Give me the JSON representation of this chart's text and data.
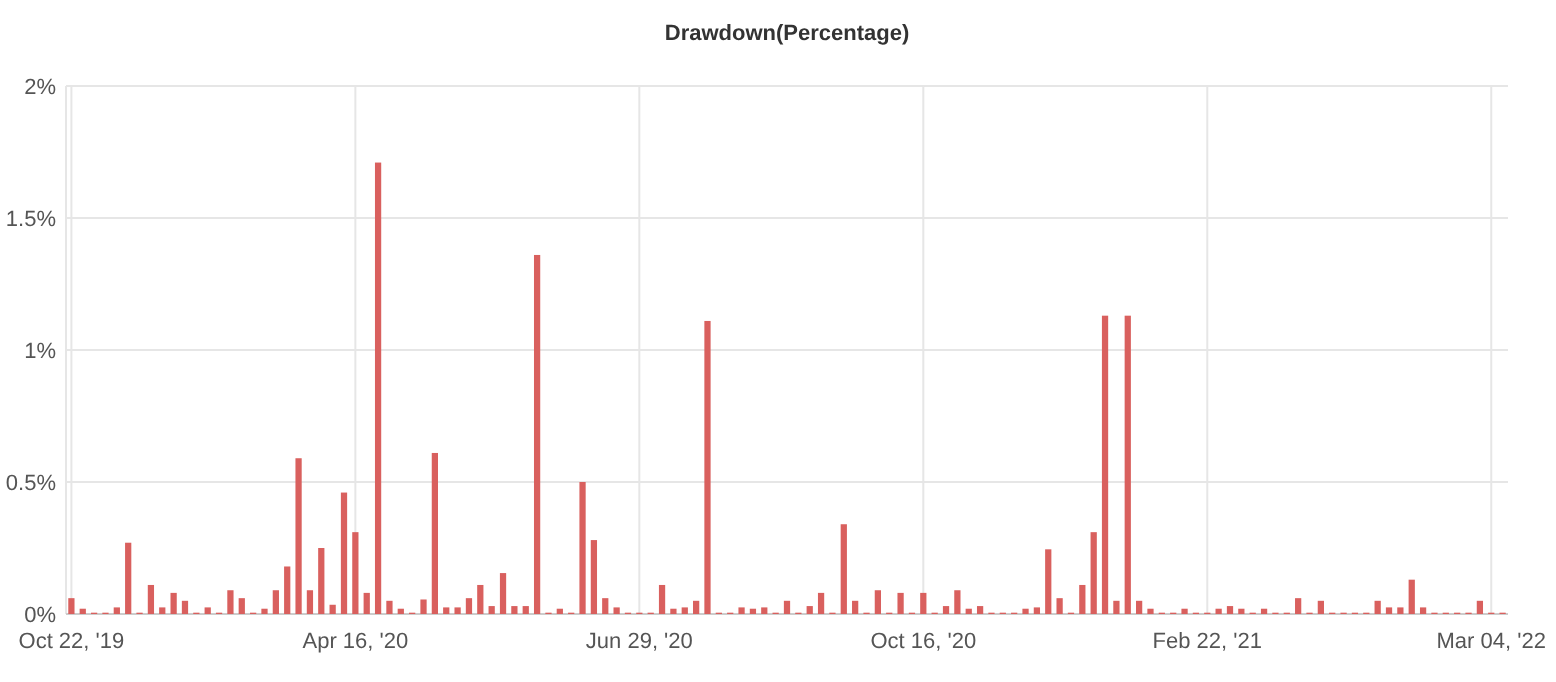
{
  "chart_data": {
    "type": "bar",
    "title": "Drawdown(Percentage)",
    "categories": [
      "Oct 22, '19",
      null,
      null,
      null,
      null,
      null,
      null,
      null,
      null,
      null,
      null,
      null,
      null,
      null,
      null,
      null,
      null,
      null,
      null,
      null,
      null,
      null,
      null,
      null,
      null,
      "Apr 16, '20",
      null,
      null,
      null,
      null,
      null,
      null,
      null,
      null,
      null,
      null,
      null,
      null,
      null,
      null,
      null,
      null,
      null,
      null,
      null,
      null,
      null,
      null,
      null,
      null,
      "Jun 29, '20",
      null,
      null,
      null,
      null,
      null,
      null,
      null,
      null,
      null,
      null,
      null,
      null,
      null,
      null,
      null,
      null,
      null,
      null,
      null,
      null,
      null,
      null,
      null,
      null,
      "Oct 16, '20",
      null,
      null,
      null,
      null,
      null,
      null,
      null,
      null,
      null,
      null,
      null,
      null,
      null,
      null,
      null,
      null,
      null,
      null,
      null,
      null,
      null,
      null,
      null,
      null,
      "Feb 22, '21",
      null,
      null,
      null,
      null,
      null,
      null,
      null,
      null,
      null,
      null,
      null,
      null,
      null,
      null,
      null,
      null,
      null,
      null,
      null,
      null,
      null,
      null,
      null,
      null,
      "Mar 04, '22",
      null
    ],
    "values": [
      0.06,
      0.02,
      0.005,
      0.005,
      0.025,
      0.27,
      0.005,
      0.11,
      0.025,
      0.08,
      0.05,
      0.005,
      0.025,
      0.005,
      0.09,
      0.06,
      0.005,
      0.02,
      0.09,
      0.18,
      0.59,
      0.09,
      0.25,
      0.035,
      0.46,
      0.31,
      0.08,
      1.71,
      0.05,
      0.02,
      0.005,
      0.055,
      0.61,
      0.025,
      0.025,
      0.06,
      0.11,
      0.03,
      0.155,
      0.03,
      0.03,
      1.36,
      0.005,
      0.02,
      0.005,
      0.5,
      0.28,
      0.06,
      0.025,
      0.005,
      0.005,
      0.005,
      0.11,
      0.02,
      0.025,
      0.05,
      1.11,
      0.005,
      0.005,
      0.025,
      0.02,
      0.025,
      0.005,
      0.05,
      0.005,
      0.03,
      0.08,
      0.005,
      0.34,
      0.05,
      0.005,
      0.09,
      0.005,
      0.08,
      0.005,
      0.08,
      0.005,
      0.03,
      0.09,
      0.02,
      0.03,
      0.005,
      0.005,
      0.005,
      0.02,
      0.025,
      0.245,
      0.06,
      0.005,
      0.11,
      0.31,
      1.13,
      0.05,
      1.13,
      0.05,
      0.02,
      0.005,
      0.005,
      0.02,
      0.005,
      0.005,
      0.02,
      0.03,
      0.02,
      0.005,
      0.02,
      0.005,
      0.005,
      0.06,
      0.005,
      0.05,
      0.005,
      0.005,
      0.005,
      0.005,
      0.05,
      0.025,
      0.025,
      0.13,
      0.025,
      0.005,
      0.005,
      0.005,
      0.005,
      0.05,
      0.005,
      0.005
    ],
    "color": "#d9605e",
    "ylim": [
      0,
      2
    ],
    "yticks": [
      {
        "value": 0,
        "label": "0%"
      },
      {
        "value": 0.5,
        "label": "0.5%"
      },
      {
        "value": 1,
        "label": "1%"
      },
      {
        "value": 1.5,
        "label": "1.5%"
      },
      {
        "value": 2,
        "label": "2%"
      }
    ],
    "grid": true
  }
}
